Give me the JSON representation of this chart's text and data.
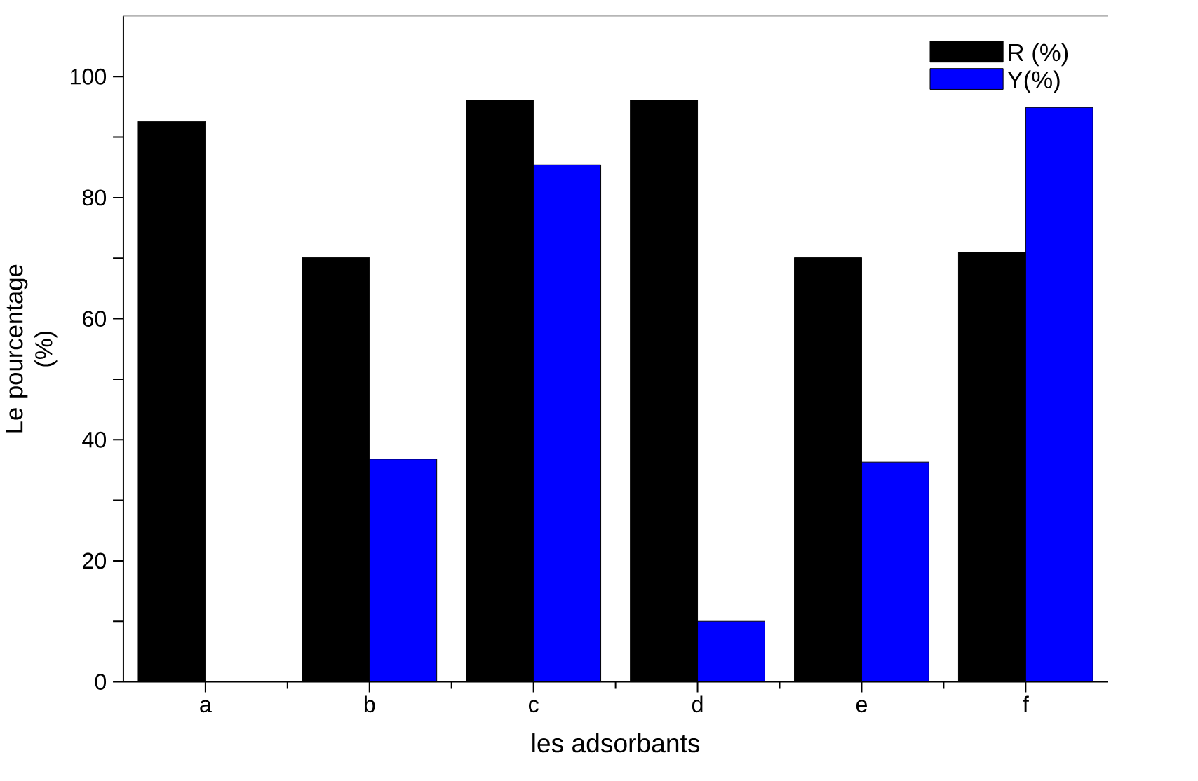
{
  "chart_data": {
    "type": "bar",
    "xlabel": "les adsorbants",
    "ylabel": "Le pourcentage (%)",
    "categories": [
      "a",
      "b",
      "c",
      "d",
      "e",
      "f"
    ],
    "series": [
      {
        "name": "R (%)",
        "color": "#000000",
        "values": [
          92.6,
          70.1,
          96.1,
          96.1,
          70.1,
          71.0
        ]
      },
      {
        "name": "Y(%)",
        "color": "#0000ff",
        "values": [
          null,
          36.8,
          85.4,
          10.0,
          36.3,
          94.9
        ]
      }
    ],
    "ylim": [
      0,
      110
    ],
    "yticks": [
      0,
      {
        "value": 10,
        "label": null
      },
      20,
      {
        "value": 30,
        "label": null
      },
      40,
      {
        "value": 50,
        "label": null
      },
      60,
      {
        "value": 70,
        "label": null
      },
      80,
      {
        "value": 90,
        "label": null
      },
      100
    ],
    "grid": false,
    "legend": "top right"
  }
}
